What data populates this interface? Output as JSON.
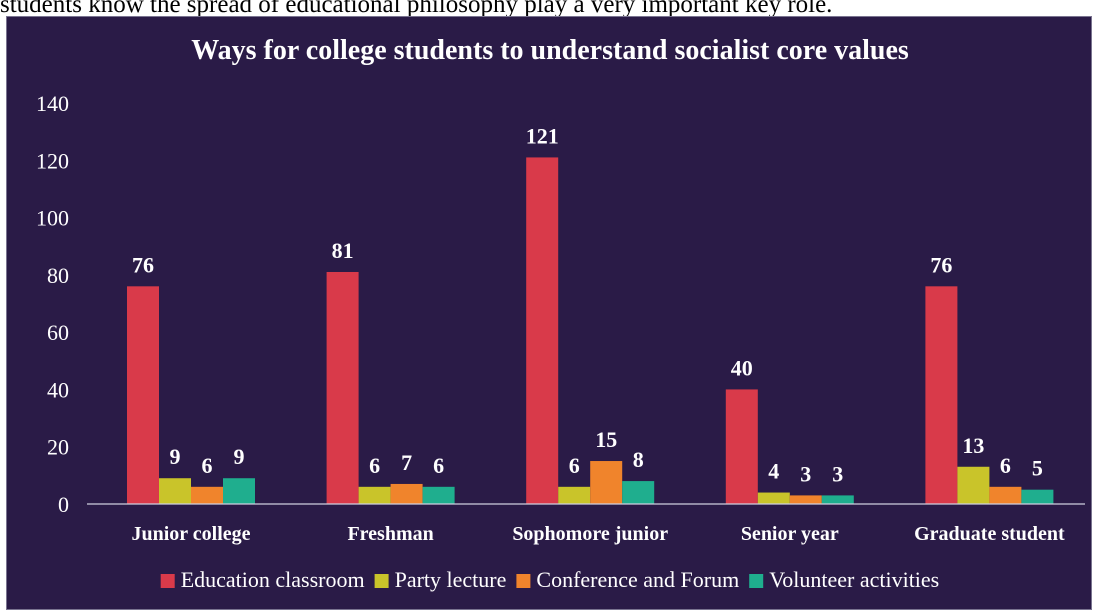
{
  "page": {
    "top_text": "students know the spread of educational philosophy play a very important key role."
  },
  "colors": {
    "background": "#2a1b47",
    "axis": "#cfcfe0"
  },
  "chart_data": {
    "type": "bar",
    "title": "Ways for college students to understand socialist core values",
    "categories": [
      "Junior college",
      "Freshman",
      "Sophomore junior",
      "Senior year",
      "Graduate student"
    ],
    "series": [
      {
        "name": "Education classroom",
        "color": "#d93a4a",
        "values": [
          76,
          81,
          121,
          40,
          76
        ]
      },
      {
        "name": "Party lecture",
        "color": "#c9c42a",
        "values": [
          9,
          6,
          6,
          4,
          13
        ]
      },
      {
        "name": "Conference and Forum",
        "color": "#f0842c",
        "values": [
          6,
          7,
          15,
          3,
          6
        ]
      },
      {
        "name": "Volunteer activities",
        "color": "#1fae8e",
        "values": [
          9,
          6,
          8,
          3,
          5
        ]
      }
    ],
    "ylim": [
      0,
      140
    ],
    "yticks": [
      0,
      20,
      40,
      60,
      80,
      100,
      120,
      140
    ],
    "grid": false,
    "legend": "bottom",
    "data_labels": true
  }
}
